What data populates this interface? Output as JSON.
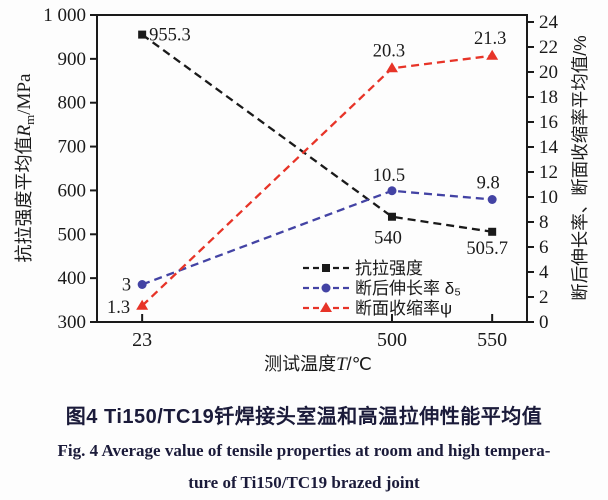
{
  "figure": {
    "caption_cn": "图4  Ti150/TC19钎焊接头室温和高温拉伸性能平均值",
    "caption_en_line1": "Fig. 4  Average value of tensile properties at room and high tempera-",
    "caption_en_line2": "ture of Ti150/TC19 brazed joint",
    "caption_color": "#1b1b3a"
  },
  "chart_data": {
    "type": "line",
    "ink_color": "#1a1a1a",
    "x_categories": [
      "23",
      "500",
      "550"
    ],
    "x_positions": [
      0.105,
      0.686,
      0.919
    ],
    "xlabel": {
      "prefix": "测试温度",
      "symbol": "T",
      "suffix": "/℃"
    },
    "left_axis": {
      "min": 300,
      "max": 1000,
      "tick_values": [
        300,
        400,
        500,
        600,
        700,
        800,
        900,
        1000
      ],
      "tick_labels": [
        "300",
        "400",
        "500",
        "600",
        "700",
        "800",
        "900",
        "1 000"
      ],
      "title_prefix": "抗拉强度平均值",
      "title_symbol": "R",
      "title_sub": "m",
      "title_suffix": "/MPa"
    },
    "right_axis": {
      "min": 0,
      "max": 24,
      "tick_values": [
        0,
        2,
        4,
        6,
        8,
        10,
        12,
        14,
        16,
        18,
        20,
        22,
        24
      ],
      "tick_labels": [
        "0",
        "2",
        "4",
        "6",
        "8",
        "10",
        "12",
        "14",
        "16",
        "18",
        "20",
        "22",
        "24"
      ],
      "title": "断后伸长率、断面收缩率平均值/%"
    },
    "series": [
      {
        "name": "抗拉强度",
        "axis": "left",
        "color": "#1a1a1a",
        "marker": "square",
        "values": [
          955.3,
          540,
          505.7
        ],
        "labels": [
          "955.3",
          "540",
          "505.7"
        ],
        "label_anchors": [
          "start",
          "middle",
          "middle"
        ],
        "label_offsets": [
          [
            7,
            6
          ],
          [
            -4,
            27
          ],
          [
            -5,
            22
          ]
        ]
      },
      {
        "name": "断后伸长率 δ₅",
        "axis": "right",
        "color": "#4343a4",
        "marker": "circle",
        "values": [
          3,
          10.5,
          9.8
        ],
        "labels": [
          "3",
          "10.5",
          "9.8"
        ],
        "label_anchors": [
          "end",
          "middle",
          "middle"
        ],
        "label_offsets": [
          [
            -11,
            6
          ],
          [
            -3,
            -10
          ],
          [
            -4,
            -11
          ]
        ]
      },
      {
        "name": "断面收缩率ψ",
        "axis": "right",
        "color": "#e73428",
        "marker": "triangle",
        "values": [
          1.3,
          20.3,
          21.3
        ],
        "labels": [
          "1.3",
          "20.3",
          "21.3"
        ],
        "label_anchors": [
          "end",
          "middle",
          "middle"
        ],
        "label_offsets": [
          [
            -12,
            7
          ],
          [
            -3,
            -12
          ],
          [
            -2,
            -12
          ]
        ]
      }
    ],
    "legend": {
      "position": "inside-bottom-right",
      "items": [
        "抗拉强度",
        "断后伸长率 δ₅",
        "断面收缩率ψ"
      ]
    }
  }
}
